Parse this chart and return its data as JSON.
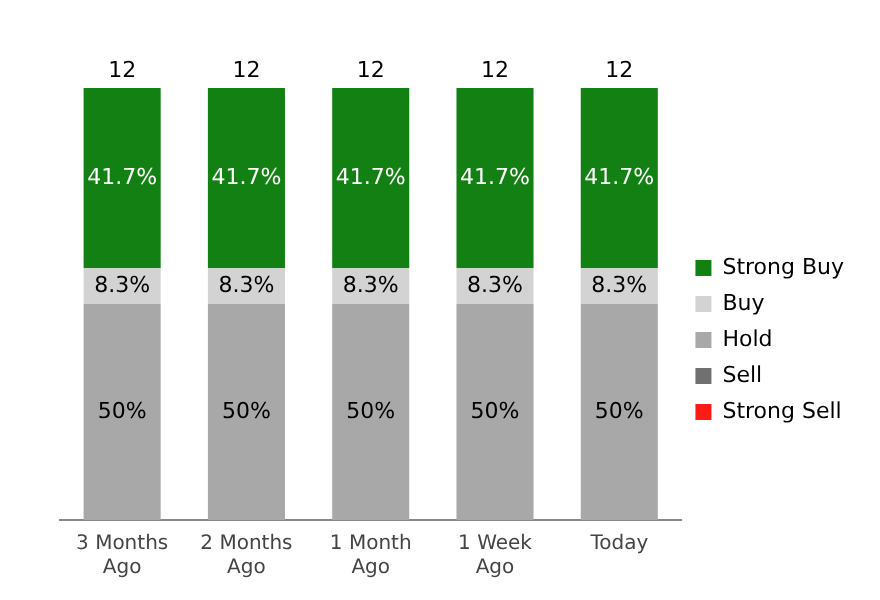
{
  "chart_data": {
    "type": "bar",
    "stacked": true,
    "legend": "right",
    "grid": false,
    "tick_labels": "x",
    "categories": [
      "3 Months Ago",
      "2 Months Ago",
      "1 Month Ago",
      "1 Week Ago",
      "Today"
    ],
    "series": [
      {
        "name": "Strong Sell",
        "color": "#ff1a1a",
        "values": [
          null,
          null,
          null,
          null,
          null
        ]
      },
      {
        "name": "Sell",
        "color": "#707070",
        "values": [
          null,
          null,
          null,
          null,
          null
        ]
      },
      {
        "name": "Hold",
        "color": "#a8a8a8",
        "values": [
          50,
          50,
          50,
          50,
          50
        ],
        "value_labels": [
          "50%",
          "50%",
          "50%",
          "50%",
          "50%"
        ]
      },
      {
        "name": "Buy",
        "color": "#d3d3d3",
        "values": [
          8.3,
          8.3,
          8.3,
          8.3,
          8.3
        ],
        "value_labels": [
          "8.3%",
          "8.3%",
          "8.3%",
          "8.3%",
          "8.3%"
        ]
      },
      {
        "name": "Strong Buy",
        "color": "#138013",
        "values": [
          41.7,
          41.7,
          41.7,
          41.7,
          41.7
        ],
        "value_labels": [
          "41.7%",
          "41.7%",
          "41.7%",
          "41.7%",
          "41.7%"
        ]
      }
    ],
    "annotations": [
      {
        "text": "12",
        "x": "3 Months Ago",
        "y": 100
      },
      {
        "text": "12",
        "x": "2 Months Ago",
        "y": 100
      },
      {
        "text": "12",
        "x": "1 Month Ago",
        "y": 100
      },
      {
        "text": "12",
        "x": "1 Week Ago",
        "y": 100
      },
      {
        "text": "12",
        "x": "Today",
        "y": 100
      }
    ]
  }
}
